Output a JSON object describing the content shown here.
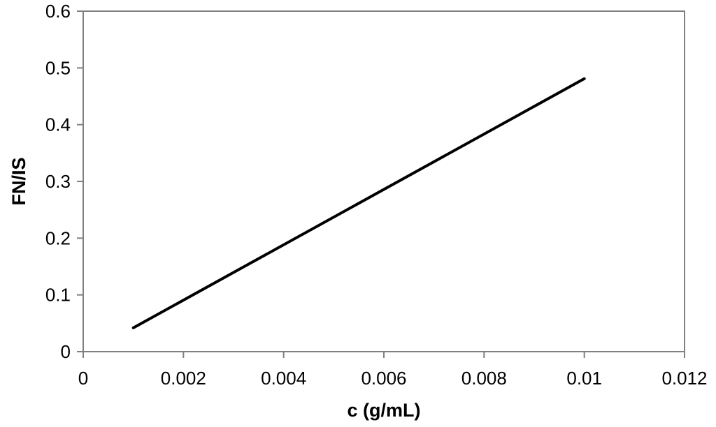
{
  "chart_data": {
    "type": "line",
    "title": "",
    "xlabel": "c (g/mL)",
    "ylabel": "FN/IS",
    "xlim": [
      0,
      0.012
    ],
    "ylim": [
      0,
      0.6
    ],
    "x_ticks": [
      "0",
      "0.002",
      "0.004",
      "0.006",
      "0.008",
      "0.01",
      "0.012"
    ],
    "y_ticks": [
      "0",
      "0.1",
      "0.2",
      "0.3",
      "0.4",
      "0.5",
      "0.6"
    ],
    "grid": false,
    "legend": "none",
    "series": [
      {
        "x": [
          0.001,
          0.01
        ],
        "y": [
          0.042,
          0.481
        ]
      }
    ],
    "colors": {
      "line": "#000000",
      "frame": "#808080",
      "background": "#ffffff"
    }
  }
}
